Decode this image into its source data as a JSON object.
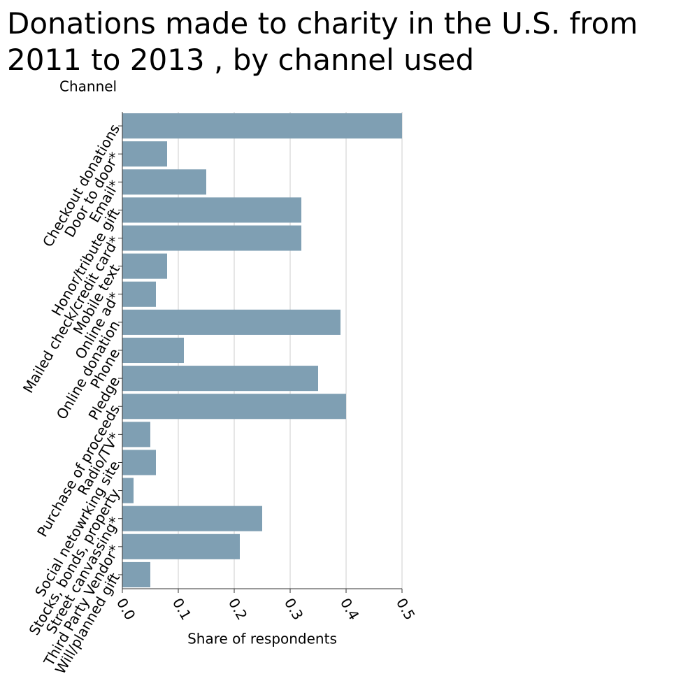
{
  "chart_data": {
    "type": "barh",
    "title": "Donations made to charity in the U.S. from 2011 to 2013 , by channel used",
    "ylabel": "Channel",
    "xlabel": "Share of respondents",
    "categories": [
      "Checkout donations",
      "Door to door*",
      "Email*",
      "Honor/tribute gift",
      "Mailed check/credit card*",
      "Mobile text",
      "Online ad*",
      "Online donation",
      "Phone",
      "Pledge",
      "Purchase of proceeds",
      "Radio/TV*",
      "Social netowrking site",
      "Stocks, bonds, property",
      "Street canvassing*",
      "Third Party Vendor*",
      "Will/planned gift"
    ],
    "values": [
      0.5,
      0.08,
      0.15,
      0.32,
      0.32,
      0.08,
      0.06,
      0.39,
      0.11,
      0.35,
      0.4,
      0.05,
      0.06,
      0.02,
      0.25,
      0.21,
      0.05
    ],
    "color": "#7f9fb3",
    "xlim": [
      0,
      0.5
    ],
    "xticks": [
      {
        "value": 0,
        "label": "0.0"
      },
      0.1,
      0.2,
      0.3,
      0.4,
      0.5
    ],
    "grid": true
  }
}
